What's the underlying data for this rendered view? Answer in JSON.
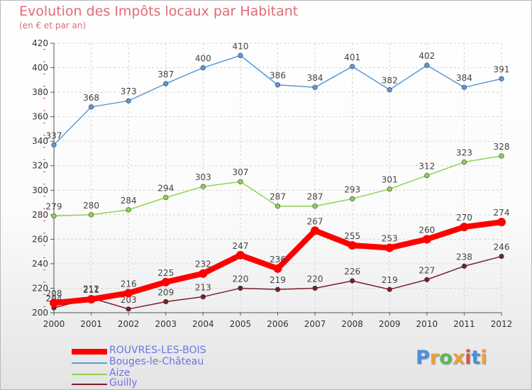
{
  "header": {
    "title": "Evolution des Impôts locaux par Habitant",
    "subtitle": "(en € et par an)"
  },
  "logo": {
    "text": "Proxiti",
    "colors": [
      "#4a90d9",
      "#e8a13b",
      "#5cb85c",
      "#e8a13b",
      "#d9534f",
      "#4a90d9",
      "#e8a13b"
    ]
  },
  "chart_data": {
    "type": "line",
    "x": [
      "2000",
      "2001",
      "2002",
      "2003",
      "2004",
      "2005",
      "2006",
      "2007",
      "2008",
      "2009",
      "2010",
      "2011",
      "2012"
    ],
    "ylim": [
      200,
      420
    ],
    "yticks": [
      "200",
      "220",
      "240",
      "260",
      "280",
      "300",
      "320",
      "340",
      "360",
      "380",
      "400",
      "420"
    ],
    "grid": true,
    "legend_position": "bottom-left",
    "series": [
      {
        "name": "Bouges-le-Château",
        "color": "#5a9bd4",
        "values": [
          337,
          368,
          373,
          387,
          400,
          410,
          386,
          384,
          401,
          382,
          402,
          384,
          391
        ]
      },
      {
        "name": "Aize",
        "color": "#8ed34f",
        "values": [
          279,
          280,
          284,
          294,
          303,
          307,
          287,
          287,
          293,
          301,
          312,
          323,
          328
        ]
      },
      {
        "name": "Guilly",
        "color": "#7a1f28",
        "values": [
          204,
          212,
          203,
          209,
          213,
          220,
          219,
          220,
          226,
          219,
          227,
          238,
          246
        ]
      },
      {
        "name": "ROUVRES-LES-BOIS",
        "color": "#ff0000",
        "values": [
          208,
          211,
          216,
          225,
          232,
          247,
          236,
          267,
          255,
          253,
          260,
          270,
          274
        ]
      }
    ],
    "labels": [
      [
        "337",
        "368",
        "373",
        "387",
        "400",
        "410",
        "386",
        "384",
        "401",
        "382",
        "402",
        "384",
        "391"
      ],
      [
        "279",
        "280",
        "284",
        "294",
        "303",
        "307",
        "287",
        "287",
        "293",
        "301",
        "312",
        "323",
        "328"
      ],
      [
        "204",
        "212",
        "203",
        "209",
        "213",
        "220",
        "219",
        "220",
        "226",
        "219",
        "227",
        "238",
        "246"
      ],
      [
        "208",
        "211",
        "216",
        "225",
        "232",
        "247",
        "236",
        "267",
        "255",
        "253",
        "260",
        "270",
        "274"
      ]
    ]
  },
  "legend": {
    "items": [
      {
        "label": "ROUVRES-LES-BOIS",
        "color": "#ff0000"
      },
      {
        "label": "Bouges-le-Château",
        "color": "#5a9bd4"
      },
      {
        "label": "Aize",
        "color": "#8ed34f"
      },
      {
        "label": "Guilly",
        "color": "#7a1f28"
      }
    ]
  }
}
